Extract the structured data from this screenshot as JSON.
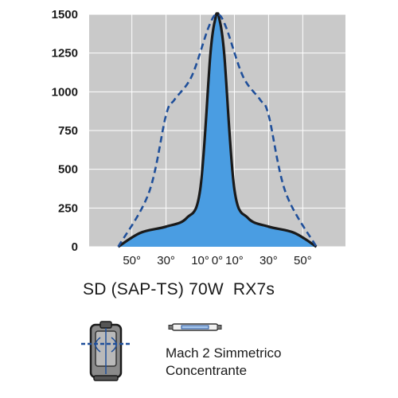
{
  "chart_data": {
    "type": "area",
    "title": "",
    "xlabel": "",
    "ylabel": "",
    "ylim": [
      0,
      1500
    ],
    "xlim": [
      -75,
      75
    ],
    "yticks": [
      0,
      250,
      500,
      750,
      1000,
      1250,
      1500
    ],
    "xtick_labels": [
      {
        "x": -50,
        "label": "50°"
      },
      {
        "x": -30,
        "label": "30°"
      },
      {
        "x": -10,
        "label": "10°"
      },
      {
        "x": 0,
        "label": "0°"
      },
      {
        "x": 10,
        "label": "10°"
      },
      {
        "x": 30,
        "label": "30°"
      },
      {
        "x": 50,
        "label": "50°"
      }
    ],
    "grid": true,
    "series": [
      {
        "style": "solid-filled",
        "color": "#1a1a1a",
        "fill": "#4a9de2",
        "x": [
          -58,
          -45,
          -30,
          -18,
          -10,
          -4,
          -1,
          0,
          1,
          4,
          10,
          18,
          30,
          45,
          58
        ],
        "y": [
          0,
          90,
          130,
          185,
          370,
          1250,
          1480,
          1500,
          1480,
          1250,
          370,
          185,
          130,
          90,
          0
        ]
      },
      {
        "style": "dashed",
        "color": "#1f4f9a",
        "x": [
          -58,
          -40,
          -30,
          -25,
          -15,
          -5,
          0,
          5,
          15,
          25,
          30,
          40,
          58
        ],
        "y": [
          0,
          350,
          850,
          950,
          1100,
          1420,
          1500,
          1420,
          1100,
          950,
          850,
          350,
          0
        ]
      }
    ]
  },
  "product": {
    "caption": "SD (SAP-TS) 70W  RX7s",
    "optic_line1": "Mach 2 Simmetrico",
    "optic_line2": "Concentrante"
  },
  "colors": {
    "plot_background": "#c9c9c9",
    "grid": "#ffffff",
    "fill": "#4a9de2",
    "dashed": "#1f4f9a"
  }
}
